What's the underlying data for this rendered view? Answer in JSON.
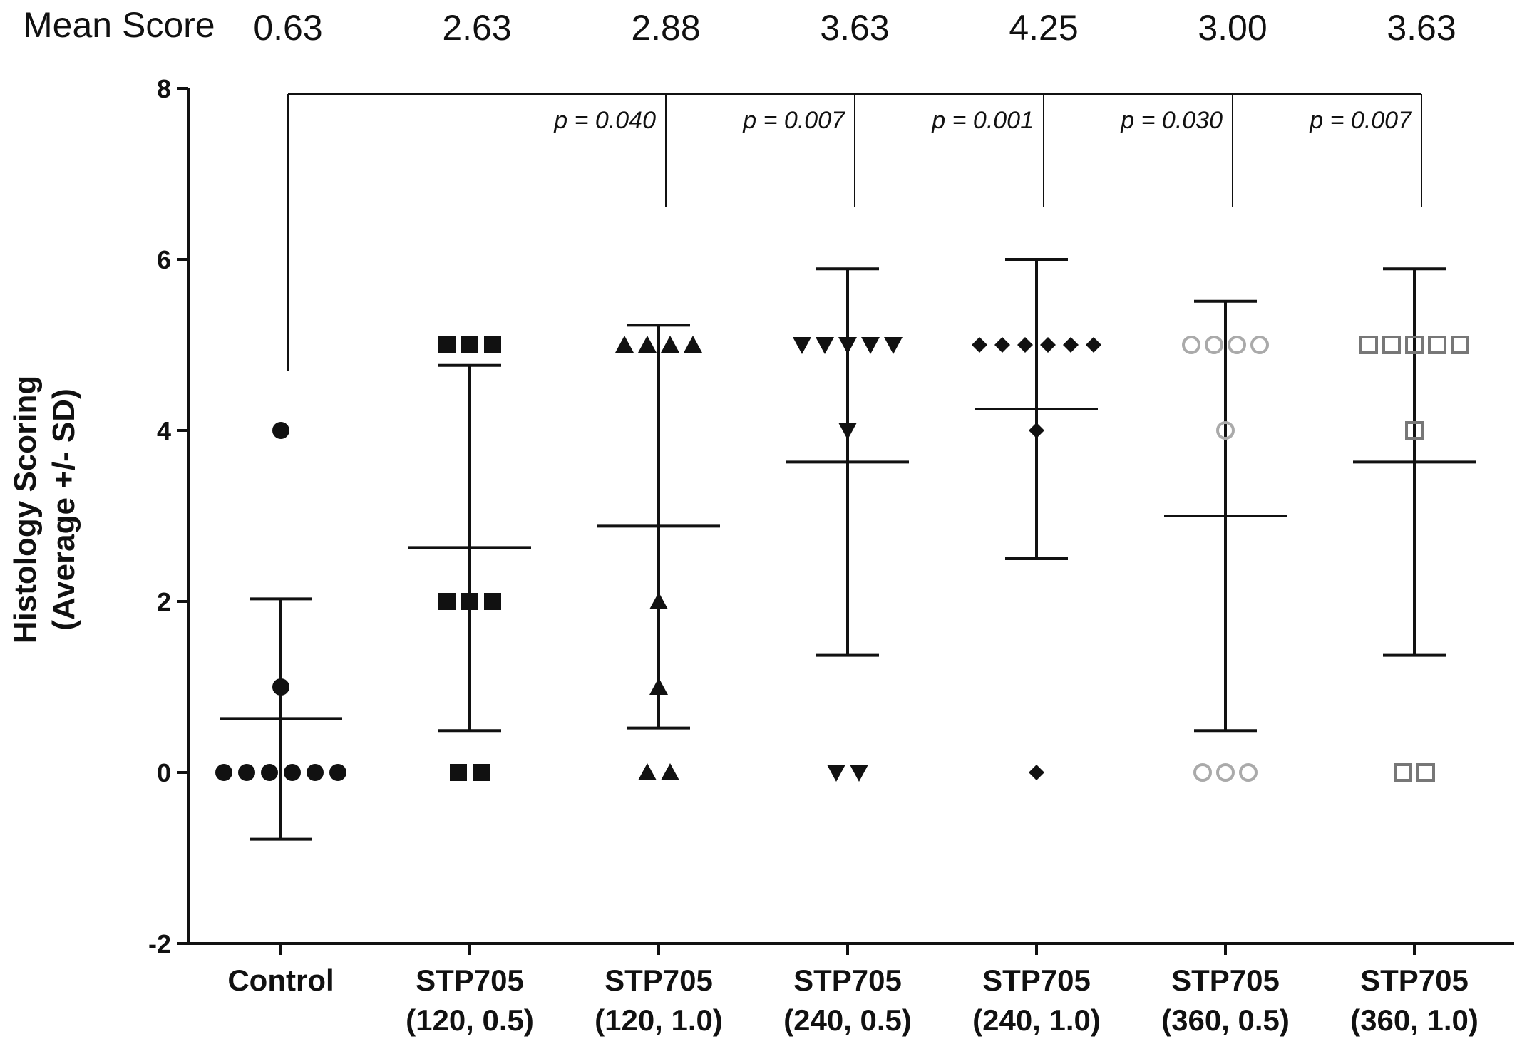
{
  "chart_data": {
    "type": "scatter",
    "ylabel_line1": "Histology Scoring",
    "ylabel_line2": "(Average +/- SD)",
    "ylim": [
      -2,
      8
    ],
    "yticks": [
      -2,
      0,
      2,
      4,
      6,
      8
    ],
    "mean_score_title": "Mean Score",
    "categories": [
      {
        "line1": "Control",
        "line2": ""
      },
      {
        "line1": "STP705",
        "line2": "(120, 0.5)"
      },
      {
        "line1": "STP705",
        "line2": "(120, 1.0)"
      },
      {
        "line1": "STP705",
        "line2": "(240, 0.5)"
      },
      {
        "line1": "STP705",
        "line2": "(240, 1.0)"
      },
      {
        "line1": "STP705",
        "line2": "(360, 0.5)"
      },
      {
        "line1": "STP705",
        "line2": "(360, 1.0)"
      }
    ],
    "mean_score_labels": [
      "0.63",
      "2.63",
      "2.88",
      "3.63",
      "4.25",
      "3.00",
      "3.63"
    ],
    "means": [
      0.63,
      2.63,
      2.88,
      3.63,
      4.25,
      3.0,
      3.63
    ],
    "sd_upper": [
      2.03,
      4.76,
      5.23,
      5.89,
      6.0,
      5.51,
      5.89
    ],
    "sd_lower": [
      -0.78,
      0.49,
      0.52,
      1.37,
      2.5,
      0.49,
      1.37
    ],
    "points": [
      [
        4,
        1,
        0,
        0,
        0,
        0,
        0,
        0
      ],
      [
        5,
        5,
        5,
        2,
        2,
        2,
        0,
        0
      ],
      [
        5,
        5,
        5,
        5,
        2,
        1,
        0,
        0
      ],
      [
        5,
        5,
        5,
        5,
        5,
        4,
        0,
        0
      ],
      [
        5,
        5,
        5,
        5,
        5,
        5,
        4,
        0
      ],
      [
        5,
        5,
        5,
        5,
        4,
        0,
        0,
        0
      ],
      [
        5,
        5,
        5,
        5,
        5,
        4,
        0,
        0
      ]
    ],
    "markers": [
      "circle",
      "square",
      "triangle-up",
      "triangle-down",
      "diamond",
      "circle-open",
      "square-open"
    ],
    "marker_colors": [
      "#111111",
      "#111111",
      "#111111",
      "#111111",
      "#111111",
      "#aaaaaa",
      "#777777"
    ],
    "comparisons": [
      {
        "group": 2,
        "p": "p = 0.040"
      },
      {
        "group": 3,
        "p": "p = 0.007"
      },
      {
        "group": 4,
        "p": "p = 0.001"
      },
      {
        "group": 5,
        "p": "p = 0.030"
      },
      {
        "group": 6,
        "p": "p = 0.007"
      }
    ]
  }
}
